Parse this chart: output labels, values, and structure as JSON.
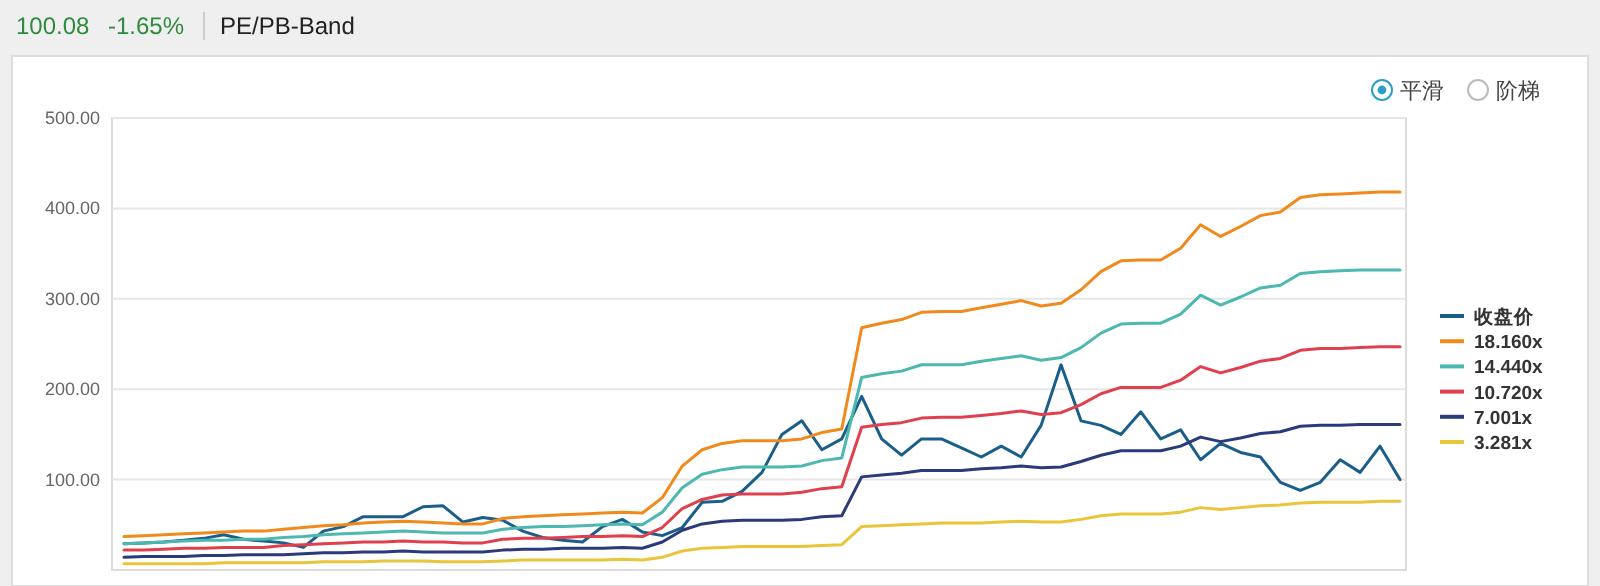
{
  "chart_data": {
    "type": "line",
    "title": "PE/PB-Band",
    "annotations": [
      "100.08",
      "-1.65%",
      "平滑",
      "阶梯"
    ],
    "categories": [
      null,
      null,
      null,
      null,
      null,
      null,
      null,
      null,
      null,
      null,
      null,
      null,
      null,
      null,
      null,
      null,
      null,
      null,
      null,
      null,
      null,
      null,
      null,
      null,
      null,
      null,
      null,
      null,
      null,
      null,
      null,
      null,
      null,
      null,
      null,
      null,
      null,
      null,
      null,
      null,
      null,
      null,
      null,
      null,
      null,
      null,
      null,
      null,
      null,
      null,
      null,
      null,
      null,
      null,
      null,
      null,
      null,
      null,
      null,
      null,
      null,
      null,
      null,
      null,
      null
    ],
    "ylim": [
      0,
      500
    ],
    "yticks": [
      {
        "value": 100,
        "label": "100.00"
      },
      {
        "value": 200,
        "label": "200.00"
      },
      {
        "value": 300,
        "label": "300.00"
      },
      {
        "value": 400,
        "label": "400.00"
      },
      {
        "value": 500,
        "label": "500.00"
      }
    ],
    "grid": "y",
    "legend": "right",
    "series": [
      {
        "name": "收盘价",
        "color": "#1a5e8a",
        "values": [
          29,
          30,
          31,
          33,
          35,
          39,
          34,
          32,
          30,
          25,
          43,
          48,
          59,
          59,
          59,
          70,
          71,
          53,
          58,
          55,
          43,
          36,
          33,
          31,
          48,
          56,
          42,
          38,
          47,
          75,
          76,
          87,
          108,
          150,
          165,
          133,
          145,
          192,
          145,
          127,
          145,
          145,
          135,
          125,
          137,
          125,
          160,
          227,
          165,
          160,
          150,
          175,
          145,
          155,
          122,
          140,
          130,
          125,
          97,
          88,
          97,
          122,
          108,
          137,
          100
        ]
      },
      {
        "name": "18.160x",
        "color": "#f08a1c",
        "values": [
          37,
          38,
          39,
          40,
          41,
          42,
          43,
          43,
          45,
          47,
          49,
          50,
          52,
          53,
          54,
          53,
          52,
          51,
          51,
          57,
          59,
          60,
          61,
          62,
          63,
          64,
          63,
          80,
          115,
          133,
          140,
          143,
          143,
          143,
          145,
          152,
          156,
          268,
          273,
          277,
          285,
          286,
          286,
          290,
          294,
          298,
          292,
          295,
          310,
          330,
          342,
          343,
          343,
          356,
          382,
          369,
          380,
          392,
          396,
          412,
          415,
          416,
          417,
          418,
          418
        ]
      },
      {
        "name": "14.440x",
        "color": "#4cb8b0",
        "values": [
          29,
          30,
          31,
          32,
          33,
          33,
          34,
          34,
          36,
          37,
          39,
          40,
          41,
          42,
          43,
          42,
          41,
          41,
          41,
          45,
          47,
          48,
          48,
          49,
          50,
          51,
          50,
          64,
          91,
          106,
          111,
          114,
          114,
          114,
          115,
          121,
          124,
          213,
          217,
          220,
          227,
          227,
          227,
          231,
          234,
          237,
          232,
          235,
          246,
          262,
          272,
          273,
          273,
          283,
          304,
          293,
          302,
          312,
          315,
          328,
          330,
          331,
          332,
          332,
          332
        ]
      },
      {
        "name": "10.720x",
        "color": "#e0404e",
        "values": [
          22,
          22,
          23,
          24,
          24,
          25,
          25,
          25,
          27,
          28,
          29,
          30,
          31,
          31,
          32,
          31,
          31,
          30,
          30,
          34,
          35,
          35,
          36,
          37,
          37,
          38,
          37,
          47,
          68,
          78,
          83,
          84,
          84,
          84,
          86,
          90,
          92,
          158,
          161,
          163,
          168,
          169,
          169,
          171,
          173,
          176,
          172,
          174,
          183,
          195,
          202,
          202,
          202,
          210,
          225,
          218,
          224,
          231,
          234,
          243,
          245,
          245,
          246,
          247,
          247
        ]
      },
      {
        "name": "7.001x",
        "color": "#2b3a7a",
        "values": [
          14,
          15,
          15,
          15,
          16,
          16,
          17,
          17,
          17,
          18,
          19,
          19,
          20,
          20,
          21,
          20,
          20,
          20,
          20,
          22,
          23,
          23,
          24,
          24,
          24,
          25,
          24,
          31,
          44,
          51,
          54,
          55,
          55,
          55,
          56,
          59,
          60,
          103,
          105,
          107,
          110,
          110,
          110,
          112,
          113,
          115,
          113,
          114,
          120,
          127,
          132,
          132,
          132,
          137,
          147,
          142,
          146,
          151,
          153,
          159,
          160,
          160,
          161,
          161,
          161
        ]
      },
      {
        "name": "3.281x",
        "color": "#e8c53a",
        "values": [
          7,
          7,
          7,
          7,
          7,
          8,
          8,
          8,
          8,
          8,
          9,
          9,
          9,
          10,
          10,
          10,
          9,
          9,
          9,
          10,
          11,
          11,
          11,
          11,
          11,
          12,
          11,
          14,
          21,
          24,
          25,
          26,
          26,
          26,
          26,
          27,
          28,
          48,
          49,
          50,
          51,
          52,
          52,
          52,
          53,
          54,
          53,
          53,
          56,
          60,
          62,
          62,
          62,
          64,
          69,
          67,
          69,
          71,
          72,
          74,
          75,
          75,
          75,
          76,
          76
        ]
      }
    ]
  }
}
